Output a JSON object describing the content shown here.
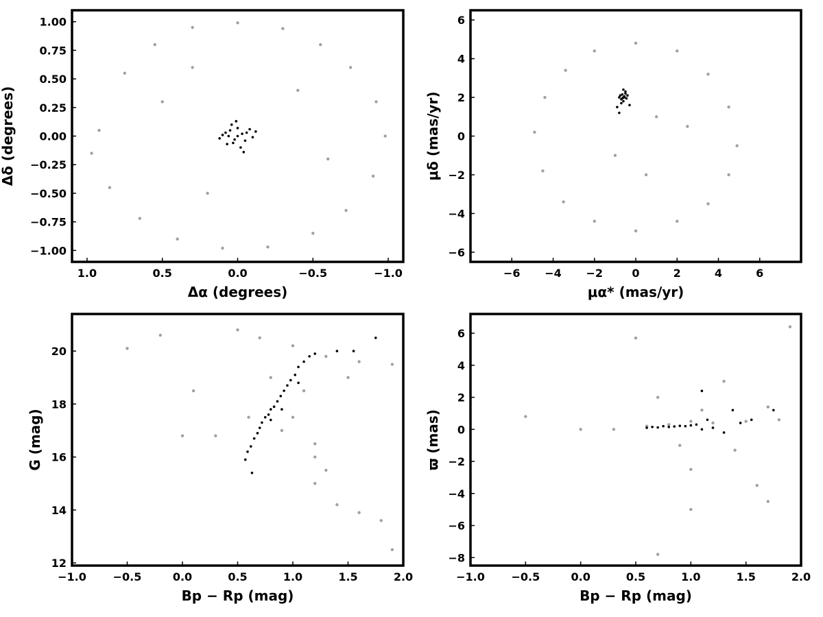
{
  "chart_data": [
    {
      "type": "scatter",
      "panel": "top-left",
      "xlabel": "Δα (degrees)",
      "ylabel": "Δδ (degrees)",
      "xlim": [
        1.1,
        -1.1
      ],
      "ylim": [
        -1.1,
        1.1
      ],
      "x_inverted": true,
      "xticks": [
        1.0,
        0.5,
        0.0,
        -0.5,
        -1.0
      ],
      "xtick_labels": [
        "1.0",
        "0.5",
        "0.0",
        "−0.5",
        "−1.0"
      ],
      "yticks": [
        1.0,
        0.75,
        0.5,
        0.25,
        0.0,
        -0.25,
        -0.5,
        -0.75,
        -1.0
      ],
      "ytick_labels": [
        "1.00",
        "0.75",
        "0.50",
        "0.25",
        "0.00",
        "−0.25",
        "−0.50",
        "−0.75",
        "−1.00"
      ],
      "grid": false,
      "series": [
        {
          "color": "#a0a0a0",
          "points": [
            [
              0.92,
              0.05
            ],
            [
              0.75,
              0.55
            ],
            [
              0.55,
              0.8
            ],
            [
              0.3,
              0.95
            ],
            [
              0.0,
              0.99
            ],
            [
              -0.3,
              0.94
            ],
            [
              -0.55,
              0.8
            ],
            [
              -0.75,
              0.6
            ],
            [
              -0.92,
              0.3
            ],
            [
              -0.98,
              0.0
            ],
            [
              -0.9,
              -0.35
            ],
            [
              -0.72,
              -0.65
            ],
            [
              -0.5,
              -0.85
            ],
            [
              -0.2,
              -0.97
            ],
            [
              0.1,
              -0.98
            ],
            [
              0.4,
              -0.9
            ],
            [
              0.65,
              -0.72
            ],
            [
              0.85,
              -0.45
            ],
            [
              0.97,
              -0.15
            ],
            [
              0.5,
              0.3
            ],
            [
              -0.4,
              0.4
            ],
            [
              0.2,
              -0.5
            ],
            [
              -0.6,
              -0.2
            ],
            [
              0.3,
              0.6
            ]
          ]
        },
        {
          "color": "#000000",
          "points": [
            [
              0.05,
              0.05
            ],
            [
              0.0,
              0.0
            ],
            [
              -0.03,
              0.02
            ],
            [
              0.02,
              -0.03
            ],
            [
              -0.05,
              -0.04
            ],
            [
              0.08,
              0.03
            ],
            [
              -0.08,
              0.06
            ],
            [
              0.04,
              0.1
            ],
            [
              -0.02,
              -0.1
            ],
            [
              0.1,
              0.01
            ],
            [
              -0.1,
              -0.01
            ],
            [
              0.03,
              -0.06
            ],
            [
              -0.06,
              0.03
            ],
            [
              0.0,
              0.07
            ],
            [
              0.07,
              -0.07
            ],
            [
              -0.12,
              0.04
            ],
            [
              0.12,
              -0.02
            ],
            [
              0.01,
              0.13
            ],
            [
              -0.04,
              -0.14
            ],
            [
              0.06,
              0.0
            ]
          ]
        }
      ]
    },
    {
      "type": "scatter",
      "panel": "top-right",
      "xlabel": "μα* (mas/yr)",
      "ylabel": "μδ (mas/yr)",
      "xlim": [
        -8,
        8
      ],
      "ylim": [
        -6.5,
        6.5
      ],
      "xticks": [
        -6,
        -4,
        -2,
        0,
        2,
        4,
        6
      ],
      "xtick_labels": [
        "−6",
        "−4",
        "−2",
        "0",
        "2",
        "4",
        "6"
      ],
      "yticks": [
        -6,
        -4,
        -2,
        0,
        2,
        4,
        6
      ],
      "ytick_labels": [
        "−6",
        "−4",
        "−2",
        "0",
        "2",
        "4",
        "6"
      ],
      "grid": false,
      "series": [
        {
          "color": "#a0a0a0",
          "points": [
            [
              0.0,
              4.8
            ],
            [
              2.0,
              4.4
            ],
            [
              3.5,
              3.2
            ],
            [
              4.5,
              1.5
            ],
            [
              4.9,
              -0.5
            ],
            [
              4.5,
              -2.0
            ],
            [
              3.5,
              -3.5
            ],
            [
              2.0,
              -4.4
            ],
            [
              0.0,
              -4.9
            ],
            [
              -2.0,
              -4.4
            ],
            [
              -3.5,
              -3.4
            ],
            [
              -4.5,
              -1.8
            ],
            [
              -4.9,
              0.2
            ],
            [
              -4.4,
              2.0
            ],
            [
              -3.4,
              3.4
            ],
            [
              -2.0,
              4.4
            ],
            [
              1.0,
              1.0
            ],
            [
              -1.0,
              -1.0
            ],
            [
              0.5,
              -2.0
            ],
            [
              2.5,
              0.5
            ]
          ]
        },
        {
          "color": "#000000",
          "points": [
            [
              -0.6,
              2.0
            ],
            [
              -0.5,
              2.2
            ],
            [
              -0.7,
              1.9
            ],
            [
              -0.55,
              2.05
            ],
            [
              -0.65,
              2.15
            ],
            [
              -0.45,
              1.95
            ],
            [
              -0.75,
              2.1
            ],
            [
              -0.6,
              1.8
            ],
            [
              -0.5,
              2.3
            ],
            [
              -0.8,
              2.0
            ],
            [
              -0.4,
              2.1
            ],
            [
              -0.6,
              2.4
            ],
            [
              -0.7,
              1.7
            ],
            [
              -0.3,
              1.6
            ],
            [
              -0.9,
              1.5
            ],
            [
              -0.8,
              1.2
            ],
            [
              -0.55,
              2.0
            ],
            [
              -0.65,
              1.95
            ]
          ]
        }
      ]
    },
    {
      "type": "scatter",
      "panel": "bottom-left",
      "xlabel": "Bp − Rp (mag)",
      "ylabel": "G (mag)",
      "xlim": [
        -1.0,
        2.0
      ],
      "ylim": [
        11.9,
        21.4
      ],
      "y_inverted": false,
      "xticks": [
        -1.0,
        -0.5,
        0.0,
        0.5,
        1.0,
        1.5,
        2.0
      ],
      "xtick_labels": [
        "−1.0",
        "−0.5",
        "0.0",
        "0.5",
        "1.0",
        "1.5",
        "2.0"
      ],
      "yticks": [
        12,
        14,
        16,
        18,
        20
      ],
      "ytick_labels": [
        "12",
        "14",
        "16",
        "18",
        "20"
      ],
      "grid": false,
      "series": [
        {
          "color": "#a0a0a0",
          "points": [
            [
              0.7,
              20.5
            ],
            [
              1.0,
              20.2
            ],
            [
              1.3,
              19.8
            ],
            [
              1.6,
              19.6
            ],
            [
              1.9,
              19.5
            ],
            [
              0.8,
              19.0
            ],
            [
              1.1,
              18.5
            ],
            [
              1.0,
              17.5
            ],
            [
              0.9,
              17.0
            ],
            [
              1.2,
              16.5
            ],
            [
              1.2,
              16.0
            ],
            [
              1.3,
              15.5
            ],
            [
              0.6,
              17.5
            ],
            [
              1.5,
              19.0
            ],
            [
              0.5,
              20.8
            ],
            [
              -0.2,
              20.6
            ],
            [
              0.1,
              18.5
            ],
            [
              1.2,
              15.0
            ],
            [
              1.4,
              14.2
            ],
            [
              1.6,
              13.9
            ],
            [
              1.8,
              13.6
            ],
            [
              0.3,
              16.8
            ],
            [
              -0.5,
              20.1
            ],
            [
              0.0,
              16.8
            ],
            [
              1.9,
              12.5
            ]
          ]
        },
        {
          "color": "#000000",
          "points": [
            [
              0.57,
              15.9
            ],
            [
              0.59,
              16.2
            ],
            [
              0.62,
              16.4
            ],
            [
              0.65,
              16.7
            ],
            [
              0.68,
              16.9
            ],
            [
              0.7,
              17.1
            ],
            [
              0.72,
              17.3
            ],
            [
              0.75,
              17.5
            ],
            [
              0.78,
              17.6
            ],
            [
              0.8,
              17.8
            ],
            [
              0.83,
              17.9
            ],
            [
              0.86,
              18.1
            ],
            [
              0.89,
              18.3
            ],
            [
              0.92,
              18.5
            ],
            [
              0.95,
              18.7
            ],
            [
              0.98,
              18.9
            ],
            [
              1.02,
              19.1
            ],
            [
              1.05,
              19.4
            ],
            [
              1.1,
              19.6
            ],
            [
              1.15,
              19.8
            ],
            [
              1.2,
              19.9
            ],
            [
              1.4,
              20.0
            ],
            [
              1.55,
              20.0
            ],
            [
              1.75,
              20.5
            ],
            [
              0.8,
              17.4
            ],
            [
              0.9,
              17.8
            ],
            [
              0.63,
              15.4
            ],
            [
              1.05,
              18.8
            ]
          ]
        }
      ]
    },
    {
      "type": "scatter",
      "panel": "bottom-right",
      "xlabel": "Bp − Rp (mag)",
      "ylabel": "ϖ (mas)",
      "xlim": [
        -1.0,
        2.0
      ],
      "ylim": [
        -8.5,
        7.2
      ],
      "xticks": [
        -1.0,
        -0.5,
        0.0,
        0.5,
        1.0,
        1.5,
        2.0
      ],
      "xtick_labels": [
        "−1.0",
        "−0.5",
        "0.0",
        "0.5",
        "1.0",
        "1.5",
        "2.0"
      ],
      "yticks": [
        -8,
        -6,
        -4,
        -2,
        0,
        2,
        4,
        6
      ],
      "ytick_labels": [
        "−8",
        "−6",
        "−4",
        "−2",
        "0",
        "2",
        "4",
        "6"
      ],
      "grid": false,
      "series": [
        {
          "color": "#a0a0a0",
          "points": [
            [
              0.6,
              0.2
            ],
            [
              0.8,
              0.3
            ],
            [
              1.0,
              0.5
            ],
            [
              1.2,
              0.4
            ],
            [
              1.5,
              0.5
            ],
            [
              1.8,
              0.6
            ],
            [
              0.9,
              -1.0
            ],
            [
              1.1,
              1.2
            ],
            [
              1.4,
              -1.3
            ],
            [
              1.7,
              1.4
            ],
            [
              0.7,
              2.0
            ],
            [
              1.0,
              -2.5
            ],
            [
              1.3,
              3.0
            ],
            [
              1.6,
              -3.5
            ],
            [
              0.3,
              0.0
            ],
            [
              0.0,
              0.0
            ],
            [
              -0.5,
              0.8
            ],
            [
              0.5,
              5.7
            ],
            [
              1.9,
              6.4
            ],
            [
              0.7,
              -7.8
            ],
            [
              1.0,
              -5.0
            ],
            [
              1.7,
              -4.5
            ]
          ]
        },
        {
          "color": "#000000",
          "points": [
            [
              0.6,
              0.1
            ],
            [
              0.65,
              0.15
            ],
            [
              0.7,
              0.12
            ],
            [
              0.75,
              0.2
            ],
            [
              0.8,
              0.15
            ],
            [
              0.85,
              0.18
            ],
            [
              0.9,
              0.22
            ],
            [
              0.95,
              0.2
            ],
            [
              1.0,
              0.25
            ],
            [
              1.05,
              0.3
            ],
            [
              1.1,
              0.0
            ],
            [
              1.15,
              0.6
            ],
            [
              1.2,
              0.1
            ],
            [
              1.3,
              -0.2
            ],
            [
              1.38,
              1.2
            ],
            [
              1.45,
              0.4
            ],
            [
              1.55,
              0.6
            ],
            [
              1.75,
              1.2
            ],
            [
              1.1,
              2.4
            ]
          ]
        }
      ]
    }
  ]
}
